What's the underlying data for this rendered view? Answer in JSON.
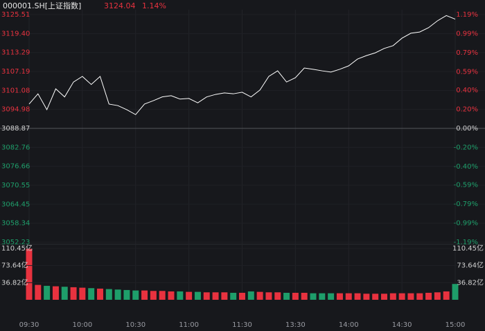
{
  "chart_data": [
    {
      "type": "line",
      "title": "000001.SH[上证指数]",
      "last_price": 3124.04,
      "last_change": {
        "value": 1.14,
        "label": "1.14%"
      },
      "categories": [
        "09:30",
        null,
        null,
        null,
        null,
        null,
        "10:00",
        null,
        null,
        null,
        null,
        null,
        "10:30",
        null,
        null,
        null,
        null,
        null,
        "11:00",
        null,
        null,
        null,
        null,
        null,
        "11:30",
        null,
        null,
        null,
        null,
        null,
        "13:30",
        null,
        null,
        null,
        null,
        null,
        "14:00",
        null,
        null,
        null,
        null,
        null,
        "14:30",
        null,
        null,
        null,
        null,
        null,
        "15:00"
      ],
      "series": [
        {
          "color": "#ffffff",
          "values": [
            3096.7,
            3100,
            3094.9,
            3101.6,
            3099,
            3103.8,
            3105.6,
            3103,
            3105.6,
            3096.7,
            3096.2,
            3094.9,
            3093.3,
            3096.7,
            3097.8,
            3099,
            3099.4,
            3098.3,
            3098.5,
            3097.1,
            3099,
            3099.8,
            3100.3,
            3100,
            3100.5,
            3099,
            3101.2,
            3105.6,
            3107.4,
            3103.8,
            3105.2,
            3108.3,
            3107.9,
            3107.4,
            3107,
            3107.9,
            3109,
            3111.2,
            3112.3,
            3113.2,
            3114.6,
            3115.5,
            3117.9,
            3119.5,
            3119.9,
            3121.3,
            3123.5,
            3125.2,
            3124.04
          ]
        }
      ],
      "ylim": [
        3052.23,
        3125.51
      ],
      "yticks": [
        3125.51,
        {
          "value": 3119.4,
          "label": "3119.40"
        },
        3113.29,
        3107.19,
        3101.08,
        3094.98,
        3088.87,
        3082.76,
        3076.66,
        3070.55,
        3064.45,
        3058.34,
        3052.23
      ],
      "y2lim": [
        -1.19,
        1.19
      ],
      "y2ticks": [
        {
          "value": 1.19,
          "label": "1.19%"
        },
        {
          "value": 0.99,
          "label": "0.99%"
        },
        {
          "value": 0.79,
          "label": "0.79%"
        },
        {
          "value": 0.59,
          "label": "0.59%"
        },
        {
          "value": 0.4,
          "label": "0.40%"
        },
        {
          "value": 0.2,
          "label": "0.20%"
        },
        {
          "value": 0,
          "label": "0.00%"
        },
        {
          "value": -0.2,
          "label": "-0.20%"
        },
        {
          "value": -0.4,
          "label": "-0.40%"
        },
        {
          "value": -0.59,
          "label": "-0.59%"
        },
        {
          "value": -0.79,
          "label": "-0.79%"
        },
        {
          "value": -0.99,
          "label": "-0.99%"
        },
        {
          "value": -1.19,
          "label": "-1.19%"
        }
      ],
      "up_color": "#e8323f",
      "down_color": "#1e9e6a"
    },
    {
      "type": "bar",
      "values": [
        110,
        32,
        30,
        29,
        28,
        27,
        26,
        25,
        24,
        23,
        22,
        21,
        20,
        20,
        19,
        19,
        18,
        18,
        17,
        17,
        16,
        16,
        16,
        15,
        15,
        18,
        17,
        16,
        16,
        15,
        15,
        15,
        14,
        14,
        14,
        14,
        14,
        14,
        13,
        13,
        13,
        14,
        14,
        14,
        14,
        15,
        16,
        18,
        34
      ],
      "ylim": [
        0,
        110.45
      ],
      "yticks": [
        {
          "value": 110.45,
          "label": "110.45亿"
        },
        {
          "value": 73.64,
          "label": "73.64亿"
        },
        {
          "value": 36.82,
          "label": "36.82亿"
        }
      ]
    }
  ]
}
